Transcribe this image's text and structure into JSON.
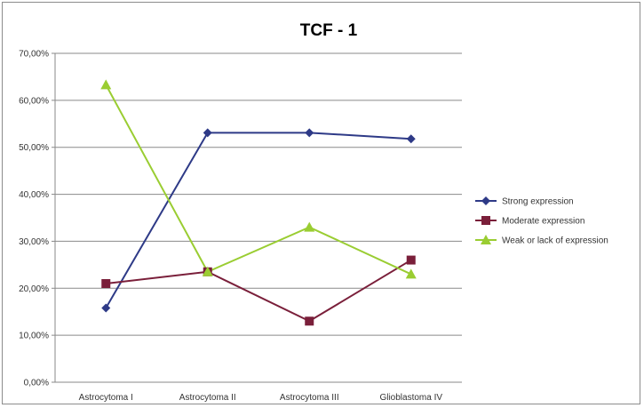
{
  "chart_data": {
    "type": "line",
    "title": "TCF - 1",
    "categories": [
      "Astrocytoma I",
      "Astrocytoma II",
      "Astrocytoma III",
      "Glioblastoma IV"
    ],
    "ylim": [
      0,
      70
    ],
    "y_ticks": [
      "0,00%",
      "10,00%",
      "20,00%",
      "30,00%",
      "40,00%",
      "50,00%",
      "60,00%",
      "70,00%"
    ],
    "grid": "horizontal",
    "legend": "right",
    "series": [
      {
        "name": "Strong expression",
        "values": [
          15.8,
          53.1,
          53.1,
          51.8
        ],
        "color": "#2e3a87",
        "marker": "diamond"
      },
      {
        "name": "Moderate expression",
        "values": [
          21.0,
          23.5,
          13.0,
          26.0
        ],
        "color": "#7a1f3a",
        "marker": "square"
      },
      {
        "name": "Weak or lack of expression",
        "values": [
          63.3,
          23.5,
          33.0,
          23.0
        ],
        "color": "#9acd32",
        "marker": "triangle"
      }
    ]
  }
}
